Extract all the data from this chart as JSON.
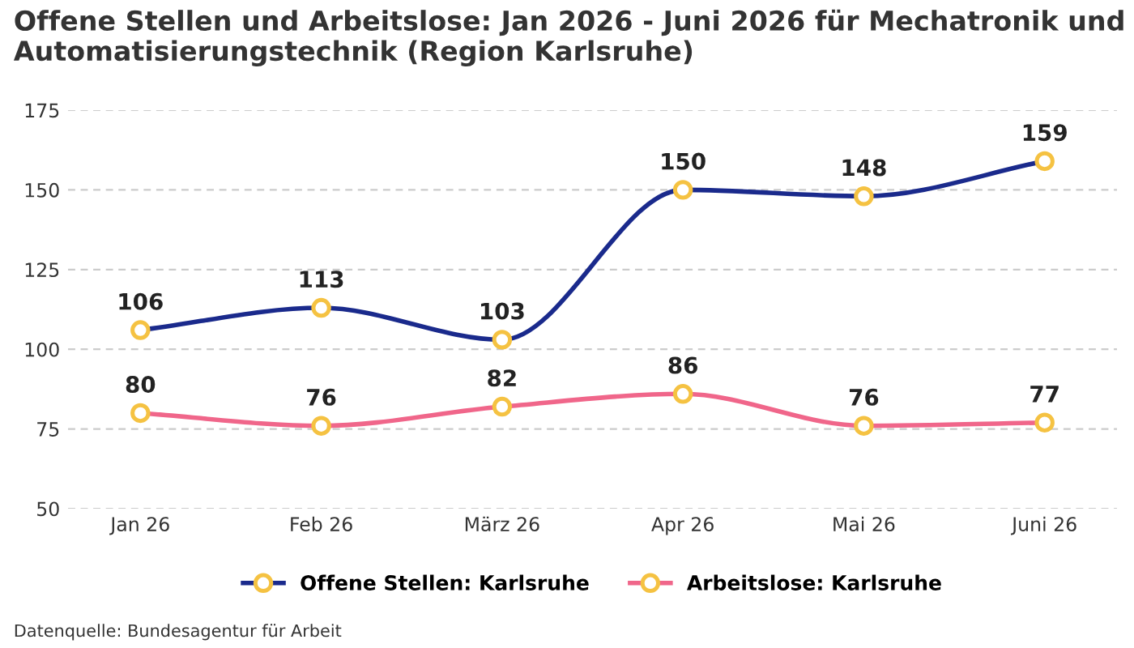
{
  "chart_data": {
    "type": "line",
    "title": "Offene Stellen und Arbeitslose: Jan 2026 - Juni 2026 für Mechatronik und Automatisierungstechnik (Region Karlsruhe)",
    "categories": [
      "Jan 26",
      "Feb 26",
      "März 26",
      "Apr 26",
      "Mai 26",
      "Juni 26"
    ],
    "series": [
      {
        "name": "Offene Stellen: Karlsruhe",
        "color": "#1a2a8c",
        "values": [
          106,
          113,
          103,
          150,
          148,
          159
        ]
      },
      {
        "name": "Arbeitslose: Karlsruhe",
        "color": "#f0668a",
        "values": [
          80,
          76,
          82,
          86,
          76,
          77
        ]
      }
    ],
    "ylim": [
      50,
      175
    ],
    "yticks": [
      50,
      75,
      100,
      125,
      150,
      175
    ],
    "grid": "y",
    "legend": "bottom",
    "marker": "circle",
    "line_style": "solid",
    "data_labels": true,
    "annotations": [
      "Datenquelle: Bundesagentur für Arbeit"
    ]
  }
}
